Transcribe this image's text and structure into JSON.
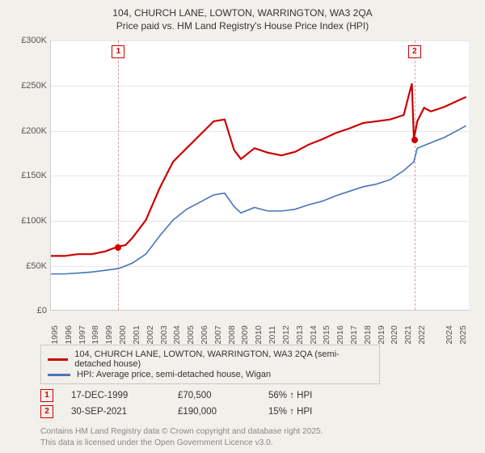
{
  "title": {
    "line1": "104, CHURCH LANE, LOWTON, WARRINGTON, WA3 2QA",
    "line2": "Price paid vs. HM Land Registry's House Price Index (HPI)",
    "fontsize": 12
  },
  "chart": {
    "type": "line",
    "background_color": "#ffffff",
    "grid_color": "#e6e6e6",
    "axis_color": "#cccccc",
    "xlim": [
      1995,
      2025.8
    ],
    "ylim": [
      0,
      300000
    ],
    "ytick_step": 50000,
    "yticks": [
      {
        "v": 0,
        "label": "£0"
      },
      {
        "v": 50000,
        "label": "£50K"
      },
      {
        "v": 100000,
        "label": "£100K"
      },
      {
        "v": 150000,
        "label": "£150K"
      },
      {
        "v": 200000,
        "label": "£200K"
      },
      {
        "v": 250000,
        "label": "£250K"
      },
      {
        "v": 300000,
        "label": "£300K"
      }
    ],
    "xticks": [
      1995,
      1996,
      1997,
      1998,
      1999,
      2000,
      2001,
      2002,
      2003,
      2004,
      2005,
      2006,
      2007,
      2008,
      2009,
      2010,
      2011,
      2012,
      2013,
      2014,
      2015,
      2016,
      2017,
      2018,
      2019,
      2020,
      2021,
      2022,
      2024,
      2025
    ],
    "tick_fontsize": 11
  },
  "series": {
    "red": {
      "label": "104, CHURCH LANE, LOWTON, WARRINGTON, WA3 2QA (semi-detached house)",
      "color": "#cc0000",
      "line_width": 2.2,
      "points": [
        [
          1995,
          60000
        ],
        [
          1996,
          60000
        ],
        [
          1997,
          62000
        ],
        [
          1998,
          62000
        ],
        [
          1999,
          65000
        ],
        [
          1999.96,
          70500
        ],
        [
          2000.5,
          72000
        ],
        [
          2001,
          80000
        ],
        [
          2002,
          100000
        ],
        [
          2003,
          135000
        ],
        [
          2004,
          165000
        ],
        [
          2005,
          180000
        ],
        [
          2006,
          195000
        ],
        [
          2007,
          210000
        ],
        [
          2007.8,
          212000
        ],
        [
          2008.5,
          178000
        ],
        [
          2009,
          168000
        ],
        [
          2010,
          180000
        ],
        [
          2011,
          175000
        ],
        [
          2012,
          172000
        ],
        [
          2013,
          176000
        ],
        [
          2014,
          184000
        ],
        [
          2015,
          190000
        ],
        [
          2016,
          197000
        ],
        [
          2017,
          202000
        ],
        [
          2018,
          208000
        ],
        [
          2019,
          210000
        ],
        [
          2020,
          212000
        ],
        [
          2021,
          217000
        ],
        [
          2021.6,
          252000
        ],
        [
          2021.75,
          190000
        ],
        [
          2022,
          210000
        ],
        [
          2022.5,
          225000
        ],
        [
          2023,
          221000
        ],
        [
          2024,
          226000
        ],
        [
          2025,
          233000
        ],
        [
          2025.6,
          237000
        ]
      ]
    },
    "blue": {
      "label": "HPI: Average price, semi-detached house, Wigan",
      "color": "#4a74b8",
      "line_width": 1.6,
      "points": [
        [
          1995,
          40000
        ],
        [
          1996,
          40000
        ],
        [
          1997,
          41000
        ],
        [
          1998,
          42000
        ],
        [
          1999,
          44000
        ],
        [
          2000,
          46000
        ],
        [
          2001,
          52000
        ],
        [
          2002,
          62000
        ],
        [
          2003,
          82000
        ],
        [
          2004,
          100000
        ],
        [
          2005,
          112000
        ],
        [
          2006,
          120000
        ],
        [
          2007,
          128000
        ],
        [
          2007.8,
          130000
        ],
        [
          2008.5,
          115000
        ],
        [
          2009,
          108000
        ],
        [
          2010,
          114000
        ],
        [
          2011,
          110000
        ],
        [
          2012,
          110000
        ],
        [
          2013,
          112000
        ],
        [
          2014,
          117000
        ],
        [
          2015,
          121000
        ],
        [
          2016,
          127000
        ],
        [
          2017,
          132000
        ],
        [
          2018,
          137000
        ],
        [
          2019,
          140000
        ],
        [
          2020,
          145000
        ],
        [
          2021,
          155000
        ],
        [
          2021.75,
          165000
        ],
        [
          2022,
          180000
        ],
        [
          2023,
          186000
        ],
        [
          2024,
          192000
        ],
        [
          2025,
          200000
        ],
        [
          2025.6,
          205000
        ]
      ]
    }
  },
  "markers": [
    {
      "n": "1",
      "x": 1999.96,
      "y": 70500,
      "color": "#cc0000"
    },
    {
      "n": "2",
      "x": 2021.75,
      "y": 190000,
      "color": "#cc0000"
    }
  ],
  "legend": {
    "border_color": "#c8c8c8"
  },
  "events": [
    {
      "n": "1",
      "date": "17-DEC-1999",
      "price": "£70,500",
      "delta": "56% ↑ HPI",
      "color": "#cc0000"
    },
    {
      "n": "2",
      "date": "30-SEP-2021",
      "price": "£190,000",
      "delta": "15% ↑ HPI",
      "color": "#cc0000"
    }
  ],
  "footer": {
    "line1": "Contains HM Land Registry data © Crown copyright and database right 2025.",
    "line2": "This data is licensed under the Open Government Licence v3.0."
  }
}
